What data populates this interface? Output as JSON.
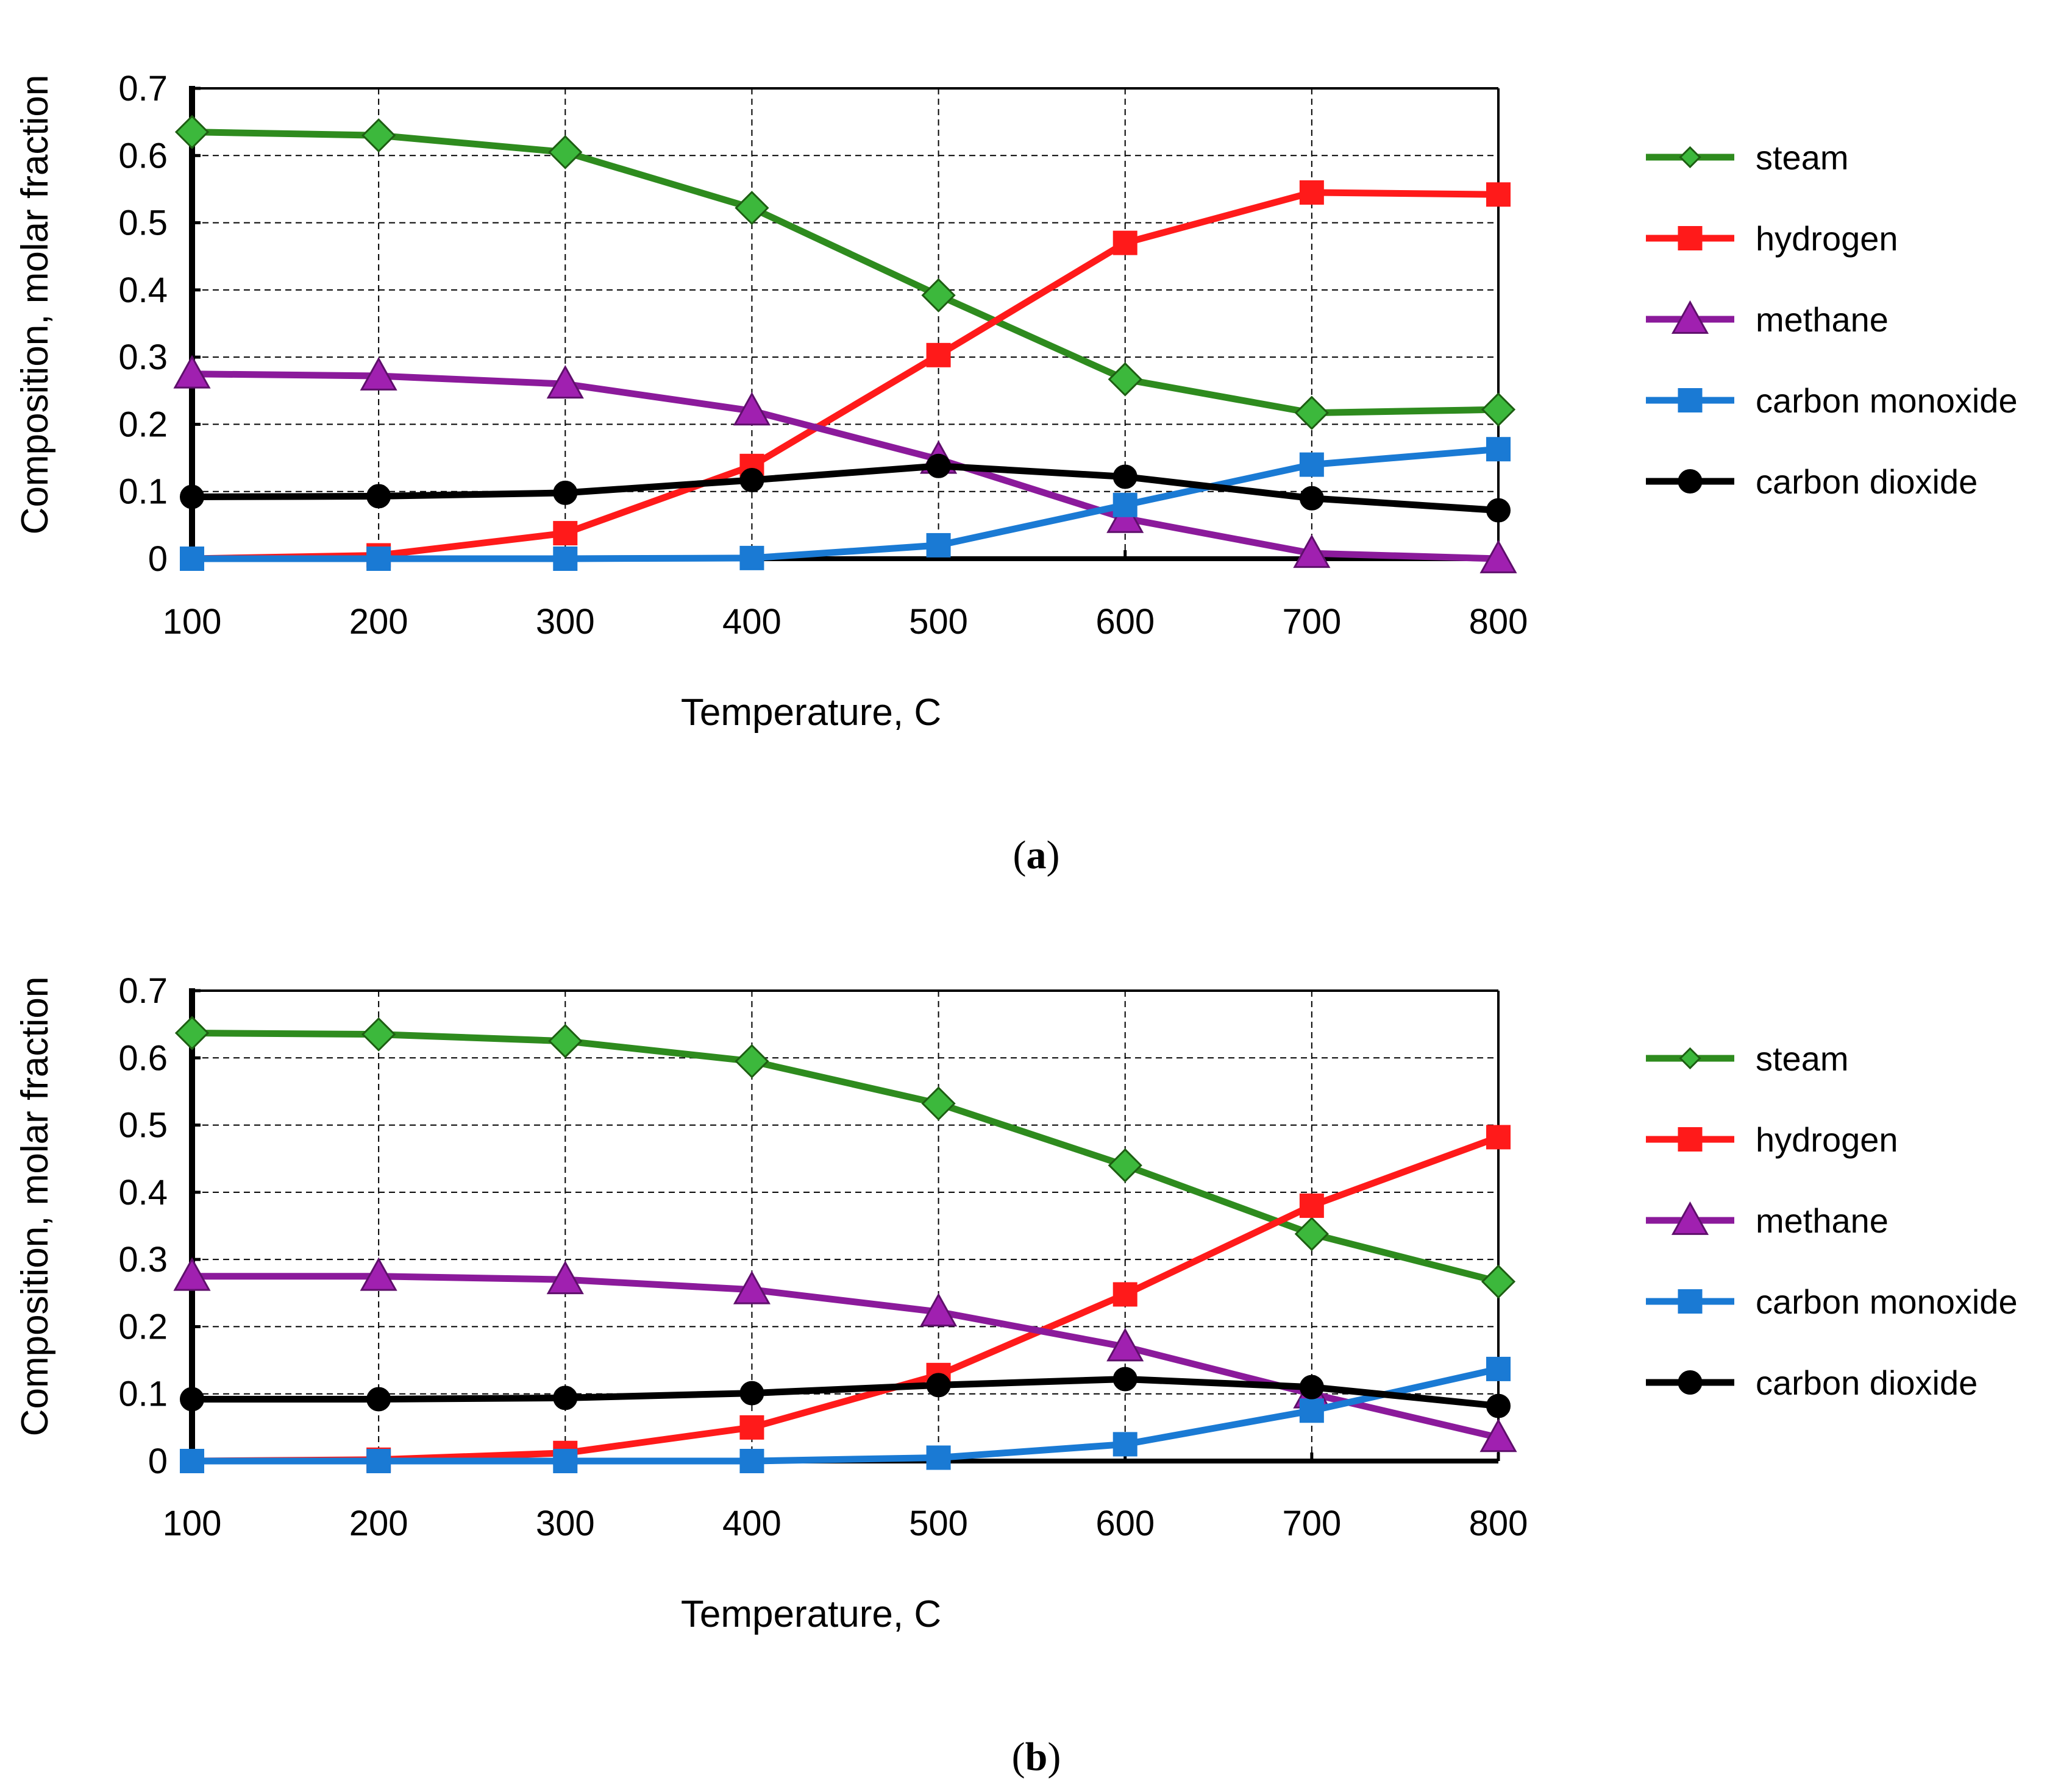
{
  "chart_data": [
    {
      "type": "line",
      "panel_label": "a",
      "x": [
        100,
        200,
        300,
        400,
        500,
        600,
        700,
        800
      ],
      "xlabel": "Temperature, C",
      "ylabel": "Composition, molar fraction",
      "ylim": [
        0,
        0.7
      ],
      "yticks": [
        "0",
        "0.1",
        "0.2",
        "0.3",
        "0.4",
        "0.5",
        "0.6",
        "0.7"
      ],
      "xticks": [
        "100",
        "200",
        "300",
        "400",
        "500",
        "600",
        "700",
        "800"
      ],
      "grid": true,
      "legend_position": "right",
      "series": [
        {
          "name": "steam",
          "color": "#2e8b1e",
          "marker": "diamond",
          "values": [
            0.635,
            0.63,
            0.605,
            0.522,
            0.392,
            0.267,
            0.217,
            0.222
          ]
        },
        {
          "name": "hydrogen",
          "color": "#ff1a1a",
          "marker": "square",
          "values": [
            0.0,
            0.005,
            0.038,
            0.138,
            0.303,
            0.47,
            0.545,
            0.542
          ]
        },
        {
          "name": "methane",
          "color": "#8b1a9b",
          "marker": "triangle",
          "values": [
            0.275,
            0.272,
            0.26,
            0.22,
            0.148,
            0.06,
            0.008,
            0.0
          ]
        },
        {
          "name": "carbon monoxide",
          "color": "#1a7ad4",
          "marker": "square",
          "values": [
            0.0,
            0.0,
            0.0,
            0.001,
            0.02,
            0.08,
            0.14,
            0.163
          ]
        },
        {
          "name": "carbon dioxide",
          "color": "#000000",
          "marker": "circle",
          "values": [
            0.092,
            0.093,
            0.098,
            0.117,
            0.138,
            0.122,
            0.09,
            0.072
          ]
        }
      ]
    },
    {
      "type": "line",
      "panel_label": "b",
      "x": [
        100,
        200,
        300,
        400,
        500,
        600,
        700,
        800
      ],
      "xlabel": "Temperature, C",
      "ylabel": "Composition, molar fraction",
      "ylim": [
        0,
        0.7
      ],
      "yticks": [
        "0",
        "0.1",
        "0.2",
        "0.3",
        "0.4",
        "0.5",
        "0.6",
        "0.7"
      ],
      "xticks": [
        "100",
        "200",
        "300",
        "400",
        "500",
        "600",
        "700",
        "800"
      ],
      "grid": true,
      "legend_position": "right",
      "series": [
        {
          "name": "steam",
          "color": "#2e8b1e",
          "marker": "diamond",
          "values": [
            0.637,
            0.635,
            0.625,
            0.595,
            0.532,
            0.44,
            0.338,
            0.267
          ]
        },
        {
          "name": "hydrogen",
          "color": "#ff1a1a",
          "marker": "square",
          "values": [
            0.0,
            0.002,
            0.012,
            0.05,
            0.128,
            0.248,
            0.38,
            0.482
          ]
        },
        {
          "name": "methane",
          "color": "#8b1a9b",
          "marker": "triangle",
          "values": [
            0.275,
            0.275,
            0.27,
            0.255,
            0.222,
            0.17,
            0.1,
            0.035
          ]
        },
        {
          "name": "carbon monoxide",
          "color": "#1a7ad4",
          "marker": "square",
          "values": [
            0.0,
            0.0,
            0.0,
            0.0,
            0.005,
            0.025,
            0.075,
            0.137
          ]
        },
        {
          "name": "carbon dioxide",
          "color": "#000000",
          "marker": "circle",
          "values": [
            0.092,
            0.092,
            0.094,
            0.101,
            0.113,
            0.122,
            0.11,
            0.082
          ]
        }
      ]
    }
  ]
}
